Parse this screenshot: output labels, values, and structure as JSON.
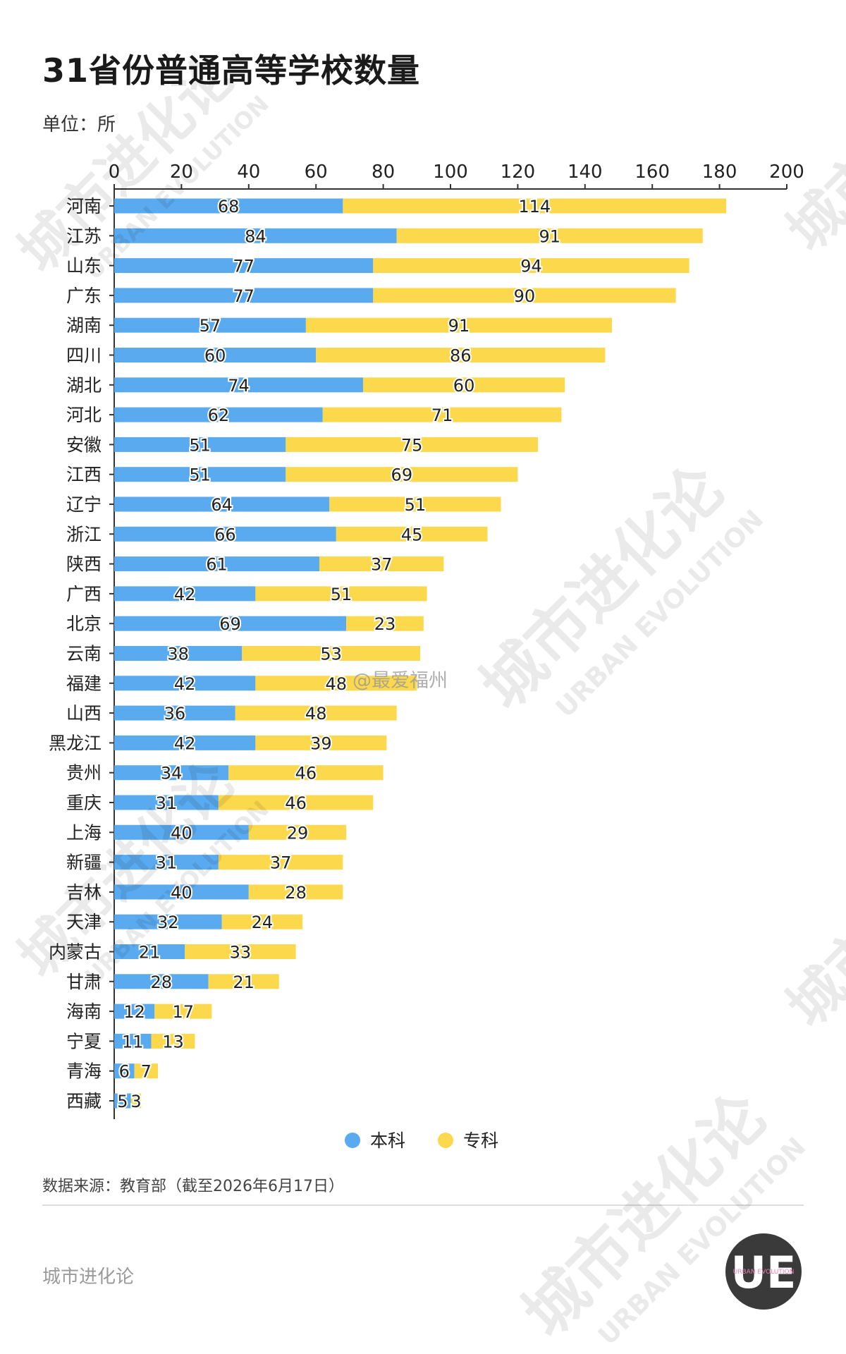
{
  "title": "31省份普通高等学校数量",
  "unit_label": "单位：所",
  "source": "数据来源：教育部（截至2026年6月17日）",
  "brand": "城市进化论",
  "watermarks": {
    "weibo": "@最爱福州",
    "cn": "城市进化论",
    "en": "URBAN EVOLUTION"
  },
  "logo": {
    "letters": "UE",
    "text": "URBAN EVOLUTION"
  },
  "colors": {
    "benke": "#5aaaf0",
    "zhuanke": "#fcd84c",
    "axis": "#333333"
  },
  "chart_data": {
    "type": "bar",
    "orientation": "horizontal",
    "stacked": true,
    "categories": [
      "河南",
      "江苏",
      "山东",
      "广东",
      "湖南",
      "四川",
      "湖北",
      "河北",
      "安徽",
      "江西",
      "辽宁",
      "浙江",
      "陕西",
      "广西",
      "北京",
      "云南",
      "福建",
      "山西",
      "黑龙江",
      "贵州",
      "重庆",
      "上海",
      "新疆",
      "吉林",
      "天津",
      "内蒙古",
      "甘肃",
      "海南",
      "宁夏",
      "青海",
      "西藏"
    ],
    "series": [
      {
        "name": "本科",
        "color": "#5aaaf0",
        "values": [
          68,
          84,
          77,
          77,
          57,
          60,
          74,
          62,
          51,
          51,
          64,
          66,
          61,
          42,
          69,
          38,
          42,
          36,
          42,
          34,
          31,
          40,
          31,
          40,
          32,
          21,
          28,
          12,
          11,
          6,
          5
        ]
      },
      {
        "name": "专科",
        "color": "#fcd84c",
        "values": [
          114,
          91,
          94,
          90,
          91,
          86,
          60,
          71,
          75,
          69,
          51,
          45,
          37,
          51,
          23,
          53,
          48,
          48,
          39,
          46,
          46,
          29,
          37,
          28,
          24,
          33,
          21,
          17,
          13,
          7,
          3
        ]
      }
    ],
    "xlim": [
      0,
      200
    ],
    "xticks": [
      0,
      20,
      40,
      60,
      80,
      100,
      120,
      140,
      160,
      180,
      200
    ],
    "axis_position": "top",
    "legend_position": "bottom-center",
    "grid": false
  }
}
